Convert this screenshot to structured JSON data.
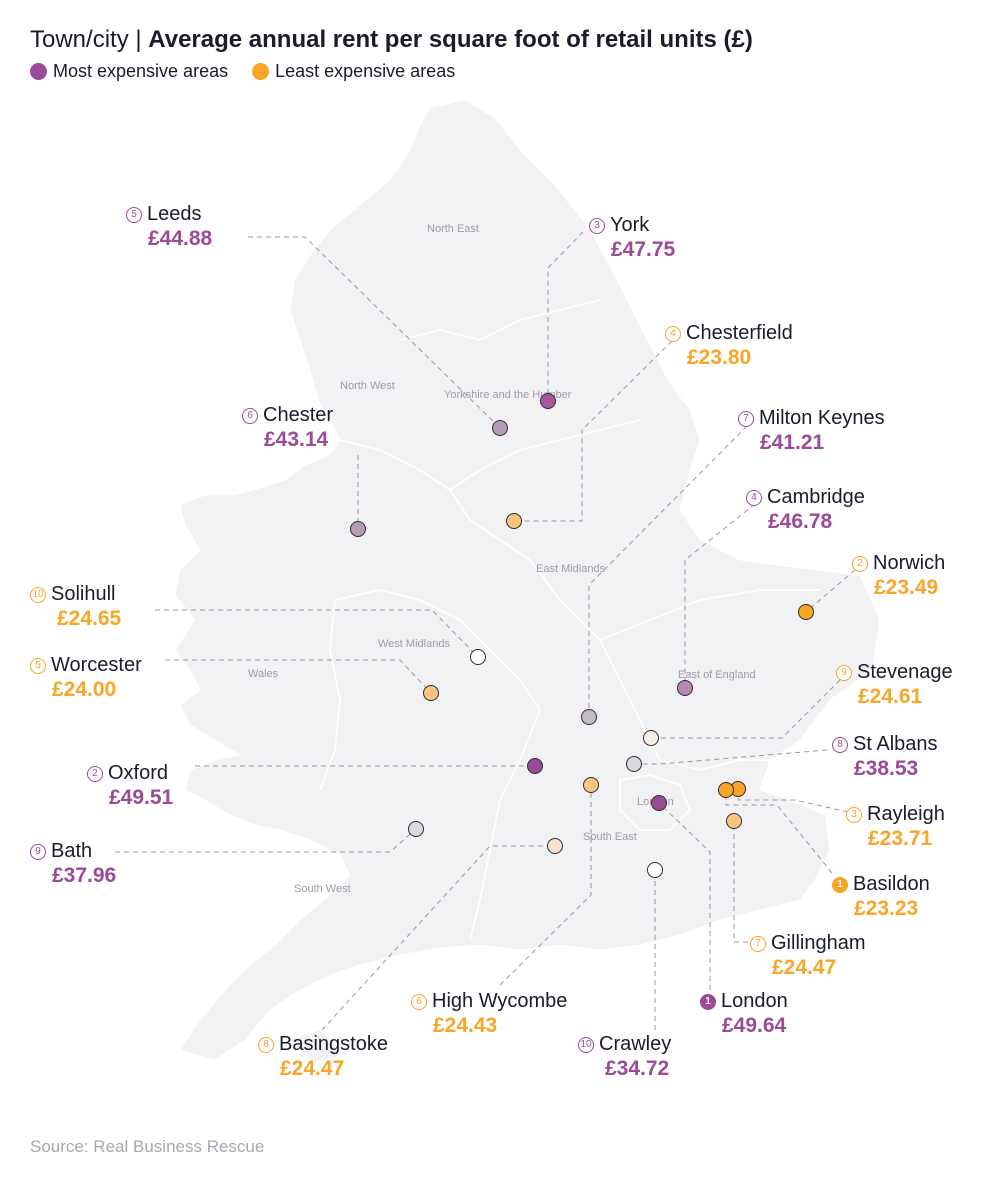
{
  "title": {
    "prefix": "Town/city |",
    "main": "Average annual rent per square foot of retail units (£)"
  },
  "legend": {
    "most": {
      "label": "Most expensive areas",
      "color": "#9b4a96"
    },
    "least": {
      "label": "Least expensive areas",
      "color": "#f9a526"
    }
  },
  "regions": {
    "north_east": "North East",
    "yorkshire": "Yorkshire and the Humber",
    "north_west": "North West",
    "east_midlands": "East Midlands",
    "west_midlands": "West Midlands",
    "wales": "Wales",
    "east_of_england": "East of England",
    "london": "London",
    "south_east": "South East",
    "south_west": "South West"
  },
  "cities": [
    {
      "key": "leeds",
      "rank": "5",
      "name": "Leeds",
      "price": "£44.88",
      "group": "most"
    },
    {
      "key": "york",
      "rank": "3",
      "name": "York",
      "price": "£47.75",
      "group": "most"
    },
    {
      "key": "chesterfield",
      "rank": "4",
      "name": "Chesterfield",
      "price": "£23.80",
      "group": "least"
    },
    {
      "key": "chester",
      "rank": "6",
      "name": "Chester",
      "price": "£43.14",
      "group": "most"
    },
    {
      "key": "milton_keynes",
      "rank": "7",
      "name": "Milton Keynes",
      "price": "£41.21",
      "group": "most"
    },
    {
      "key": "cambridge",
      "rank": "4",
      "name": "Cambridge",
      "price": "£46.78",
      "group": "most"
    },
    {
      "key": "norwich",
      "rank": "2",
      "name": "Norwich",
      "price": "£23.49",
      "group": "least"
    },
    {
      "key": "solihull",
      "rank": "10",
      "name": "Solihull",
      "price": "£24.65",
      "group": "least"
    },
    {
      "key": "worcester",
      "rank": "5",
      "name": "Worcester",
      "price": "£24.00",
      "group": "least"
    },
    {
      "key": "stevenage",
      "rank": "9",
      "name": "Stevenage",
      "price": "£24.61",
      "group": "least"
    },
    {
      "key": "st_albans",
      "rank": "8",
      "name": "St Albans",
      "price": "£38.53",
      "group": "most"
    },
    {
      "key": "oxford",
      "rank": "2",
      "name": "Oxford",
      "price": "£49.51",
      "group": "most"
    },
    {
      "key": "rayleigh",
      "rank": "3",
      "name": "Rayleigh",
      "price": "£23.71",
      "group": "least"
    },
    {
      "key": "bath",
      "rank": "9",
      "name": "Bath",
      "price": "£37.96",
      "group": "most"
    },
    {
      "key": "basildon",
      "rank": "1",
      "name": "Basildon",
      "price": "£23.23",
      "group": "least"
    },
    {
      "key": "gillingham",
      "rank": "7",
      "name": "Gillingham",
      "price": "£24.47",
      "group": "least"
    },
    {
      "key": "high_wycombe",
      "rank": "6",
      "name": "High Wycombe",
      "price": "£24.43",
      "group": "least"
    },
    {
      "key": "london",
      "rank": "1",
      "name": "London",
      "price": "£49.64",
      "group": "most"
    },
    {
      "key": "basingstoke",
      "rank": "8",
      "name": "Basingstoke",
      "price": "£24.47",
      "group": "least"
    },
    {
      "key": "crawley",
      "rank": "10",
      "name": "Crawley",
      "price": "£34.72",
      "group": "most"
    }
  ],
  "source": "Source: Real Business Rescue"
}
